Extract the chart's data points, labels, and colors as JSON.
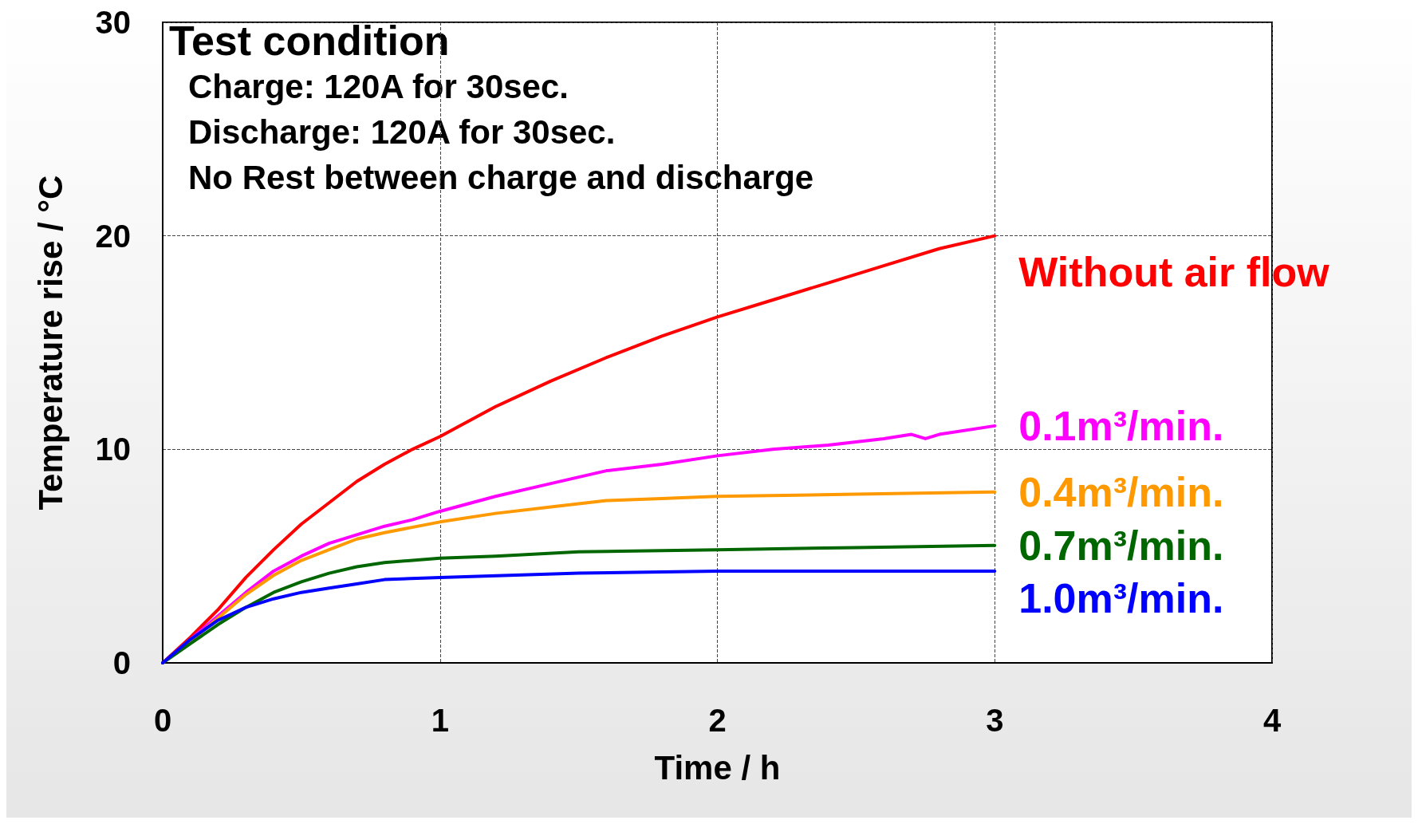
{
  "chart_data": {
    "type": "line",
    "xlabel": "Time / h",
    "ylabel": "Temperature rise / °C",
    "xlim": [
      0,
      4
    ],
    "xticks": [
      0,
      1,
      2,
      3,
      4
    ],
    "ylim": [
      0,
      30
    ],
    "yticks": [
      0,
      10,
      20,
      30
    ],
    "grid": true,
    "legend": false,
    "marker": "none",
    "line_style": "solid",
    "annotations": [
      "Test condition",
      "Charge: 120A for 30sec.",
      "Discharge: 120A for 30sec.",
      "No Rest between charge and discharge"
    ],
    "series": [
      {
        "name": "Without air flow",
        "color": "#ff0000",
        "x": [
          0,
          0.1,
          0.2,
          0.3,
          0.4,
          0.5,
          0.6,
          0.7,
          0.8,
          0.9,
          1.0,
          1.2,
          1.4,
          1.6,
          1.8,
          2.0,
          2.2,
          2.4,
          2.6,
          2.8,
          3.0
        ],
        "values": [
          0,
          1.2,
          2.5,
          4,
          5.3,
          6.5,
          7.5,
          8.5,
          9.3,
          10,
          10.6,
          12,
          13.2,
          14.3,
          15.3,
          16.2,
          17,
          17.8,
          18.6,
          19.4,
          20
        ]
      },
      {
        "name": "0.1m³/min.",
        "color": "#ff00ff",
        "x": [
          0,
          0.1,
          0.2,
          0.3,
          0.4,
          0.5,
          0.6,
          0.7,
          0.8,
          0.9,
          1.0,
          1.2,
          1.4,
          1.6,
          1.8,
          2.0,
          2.2,
          2.4,
          2.6,
          2.7,
          2.75,
          2.8,
          3.0
        ],
        "values": [
          0,
          null,
          2.2,
          3.3,
          4.3,
          5,
          5.6,
          6,
          6.4,
          6.7,
          7.1,
          7.8,
          8.4,
          9,
          9.3,
          9.7,
          10,
          10.2,
          10.5,
          10.7,
          10.5,
          10.7,
          11.1
        ]
      },
      {
        "name": "0.4m³/min.",
        "color": "#ff9900",
        "x": [
          0,
          0.1,
          0.2,
          0.3,
          0.4,
          0.5,
          0.6,
          0.7,
          0.8,
          1.0,
          1.2,
          1.4,
          1.6,
          1.8,
          2.0,
          2.5,
          3.0
        ],
        "values": [
          0,
          1,
          2.1,
          3.2,
          4.1,
          4.8,
          5.3,
          5.8,
          6.1,
          6.6,
          7,
          7.3,
          7.6,
          7.7,
          7.8,
          7.9,
          8
        ]
      },
      {
        "name": "0.7m³/min.",
        "color": "#006600",
        "x": [
          0,
          0.1,
          0.2,
          0.3,
          0.4,
          0.5,
          0.6,
          0.7,
          0.8,
          1.0,
          1.2,
          1.5,
          2.0,
          2.5,
          3.0
        ],
        "values": [
          0,
          0.9,
          1.8,
          2.6,
          3.3,
          3.8,
          4.2,
          4.5,
          4.7,
          4.9,
          5,
          5.2,
          5.3,
          5.4,
          5.5
        ]
      },
      {
        "name": "1.0m³/min.",
        "color": "#0000ff",
        "x": [
          0,
          0.1,
          0.2,
          0.3,
          0.4,
          0.5,
          0.6,
          0.7,
          0.8,
          1.0,
          1.5,
          2.0,
          3.0
        ],
        "values": [
          0,
          1.1,
          2,
          2.6,
          3,
          3.3,
          3.5,
          3.7,
          3.9,
          4,
          4.2,
          4.3,
          4.3
        ]
      }
    ]
  }
}
